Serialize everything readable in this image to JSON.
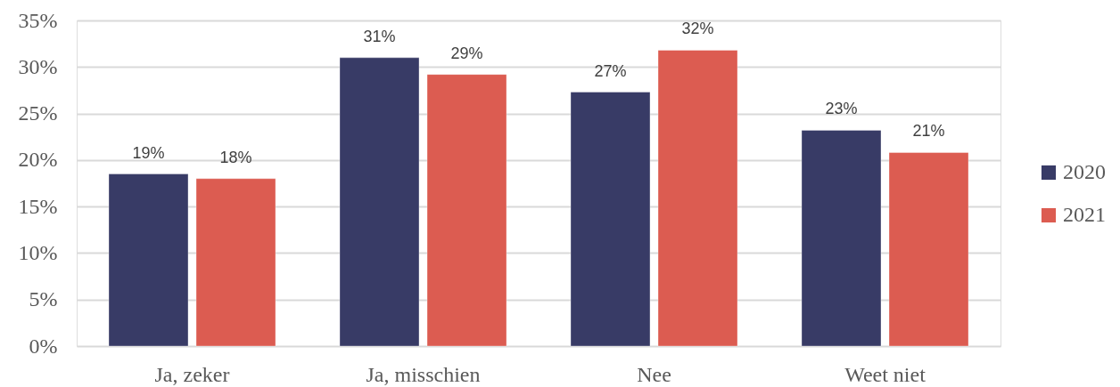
{
  "chart_data": {
    "type": "bar",
    "categories": [
      "Ja, zeker",
      "Ja, misschien",
      "Nee",
      "Weet niet"
    ],
    "series": [
      {
        "name": "2020",
        "color": "#383b66",
        "values": [
          18.5,
          31.0,
          27.3,
          23.2
        ],
        "value_labels": [
          "19%",
          "31%",
          "27%",
          "23%"
        ]
      },
      {
        "name": "2021",
        "color": "#dc5c51",
        "values": [
          18.0,
          29.2,
          31.8,
          20.8
        ],
        "value_labels": [
          "18%",
          "29%",
          "32%",
          "21%"
        ]
      }
    ],
    "ylim": [
      0,
      35
    ],
    "yticks": [
      {
        "value": 0,
        "label": "0%"
      },
      {
        "value": 5,
        "label": "5%"
      },
      {
        "value": 10,
        "label": "10%"
      },
      {
        "value": 15,
        "label": "15%"
      },
      {
        "value": 20,
        "label": "20%"
      },
      {
        "value": 25,
        "label": "25%"
      },
      {
        "value": 30,
        "label": "30%"
      },
      {
        "value": 35,
        "label": "35%"
      }
    ],
    "grid": "y",
    "legend": "right"
  }
}
